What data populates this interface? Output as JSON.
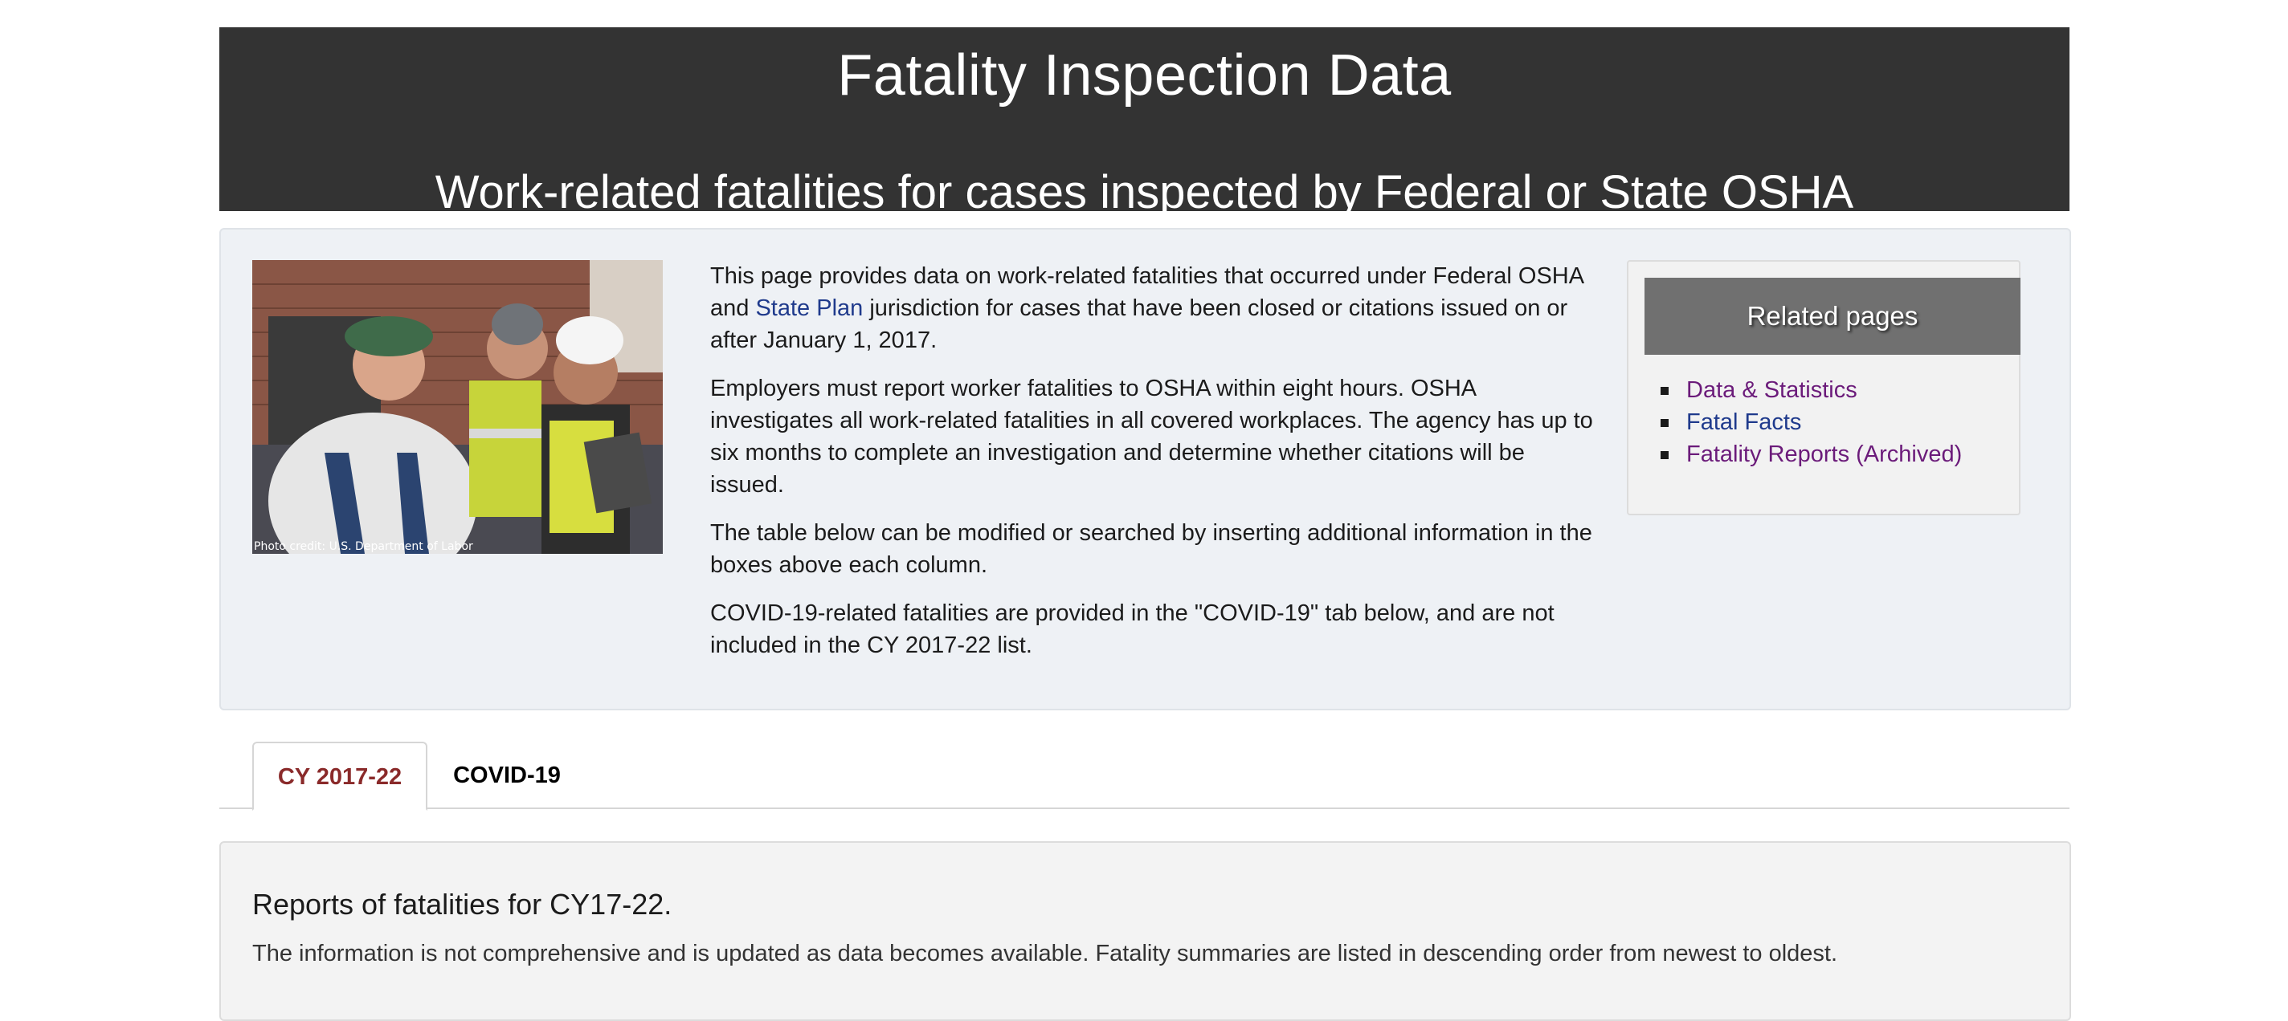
{
  "banner": {
    "title": "Fatality Inspection Data",
    "subtitle": "Work-related fatalities for cases inspected by Federal or State OSHA"
  },
  "photo": {
    "credit": "Photo credit: U.S. Department of Labor"
  },
  "intro": {
    "p1_before": "This page provides data on work-related fatalities that occurred under Federal OSHA and ",
    "p1_link": "State Plan",
    "p1_after": " jurisdiction for cases that have been closed or citations issued on or after January 1, 2017.",
    "p2": "Employers must report worker fatalities to OSHA within eight hours. OSHA investigates all work-related fatalities in all covered workplaces. The agency has up to six months to complete an investigation and determine whether citations will be issued.",
    "p3": "The table below can be modified or searched by inserting additional information in the boxes above each column.",
    "p4": "COVID-19-related fatalities are provided in the \"COVID-19\" tab below, and are not included in the CY 2017-22 list."
  },
  "related": {
    "heading": "Related pages",
    "items": [
      {
        "label": "Data & Statistics"
      },
      {
        "label": "Fatal Facts"
      },
      {
        "label": "Fatality Reports (Archived)"
      }
    ]
  },
  "tabs": [
    {
      "label": "CY 2017-22"
    },
    {
      "label": "COVID-19"
    }
  ],
  "report": {
    "heading": "Reports of fatalities for CY17-22.",
    "description": "The information is not comprehensive and is updated as data becomes available. Fatality summaries are listed in descending order from newest to oldest."
  },
  "colors": {
    "banner_bg": "#333333",
    "link": "#1f3a8c",
    "visited_link": "#6b1b7a",
    "active_tab": "#8a2a2a"
  }
}
